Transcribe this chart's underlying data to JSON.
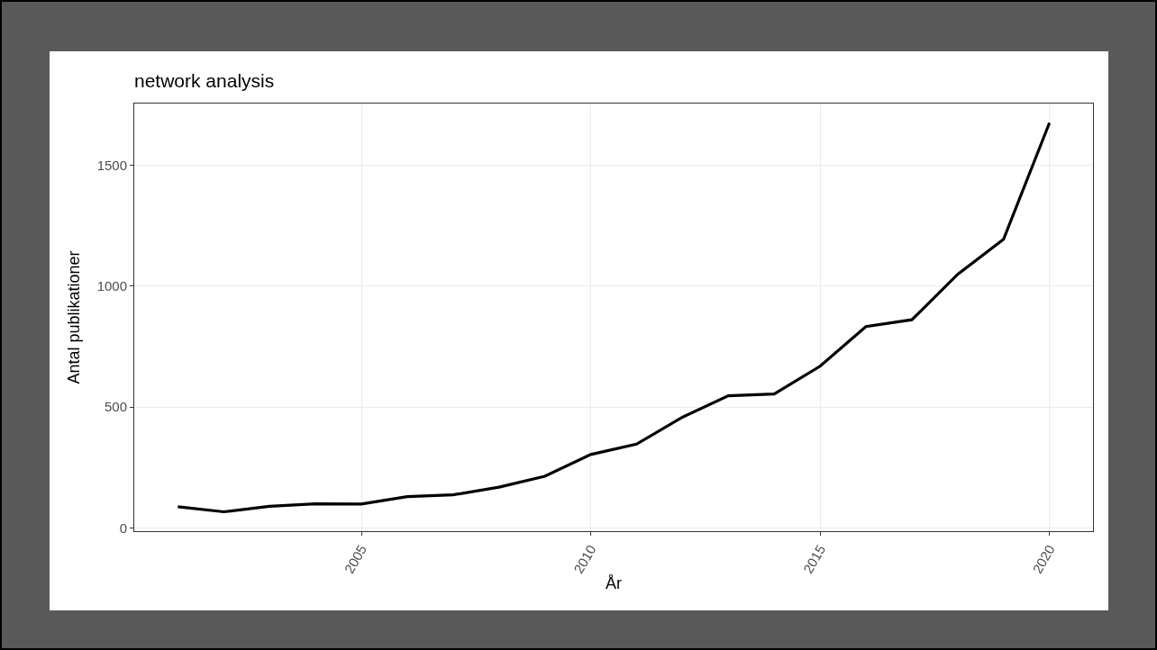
{
  "chart_data": {
    "type": "line",
    "title": "network analysis",
    "xlabel": "År",
    "ylabel": "Antal publikationer",
    "x": [
      2001,
      2002,
      2003,
      2004,
      2005,
      2006,
      2007,
      2008,
      2009,
      2010,
      2011,
      2012,
      2013,
      2014,
      2015,
      2016,
      2017,
      2018,
      2019,
      2020
    ],
    "series": [
      {
        "color": "#000000",
        "values": [
          88,
          67,
          90,
          100,
          99,
          130,
          137,
          169,
          214,
          304,
          347,
          458,
          547,
          554,
          669,
          833,
          861,
          1049,
          1194,
          1675
        ]
      }
    ],
    "xlim": [
      2000.05,
      2020.95
    ],
    "xticks": [
      2005,
      2010,
      2015,
      2020
    ],
    "ylim": [
      -13,
      1755
    ],
    "yticks": [
      0,
      500,
      1000,
      1500
    ],
    "grid": true,
    "marker": "none",
    "line_style": "solid"
  }
}
